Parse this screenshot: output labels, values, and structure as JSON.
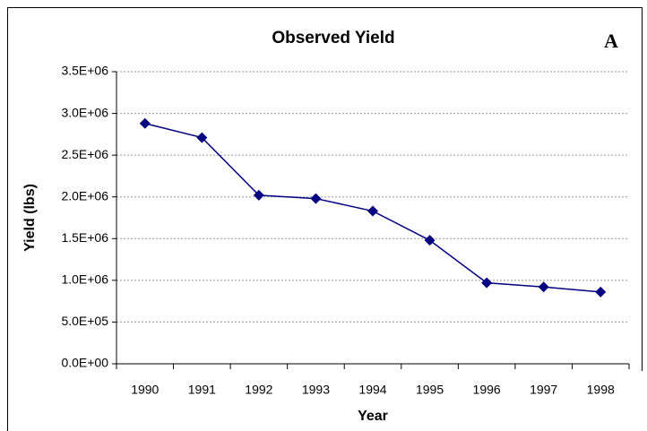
{
  "chart_data": {
    "type": "line",
    "title": "Observed Yield",
    "annotation": "A",
    "x_label": "Year",
    "y_label": "Yield (lbs)",
    "categories": [
      "1990",
      "1991",
      "1992",
      "1993",
      "1994",
      "1995",
      "1996",
      "1997",
      "1998"
    ],
    "values": [
      2880000,
      2710000,
      2020000,
      1980000,
      1830000,
      1480000,
      970000,
      920000,
      860000
    ],
    "color": "#000080",
    "ylim": [
      0,
      3500000
    ],
    "yticks": [
      {
        "value": 0,
        "label": "0.0E+00"
      },
      {
        "value": 500000,
        "label": "5.0E+05"
      },
      {
        "value": 1000000,
        "label": "1.0E+06"
      },
      {
        "value": 1500000,
        "label": "1.5E+06"
      },
      {
        "value": 2000000,
        "label": "2.0E+06"
      },
      {
        "value": 2500000,
        "label": "2.5E+06"
      },
      {
        "value": 3000000,
        "label": "3.0E+06"
      },
      {
        "value": 3500000,
        "label": "3.5E+06"
      }
    ],
    "grid": true
  }
}
